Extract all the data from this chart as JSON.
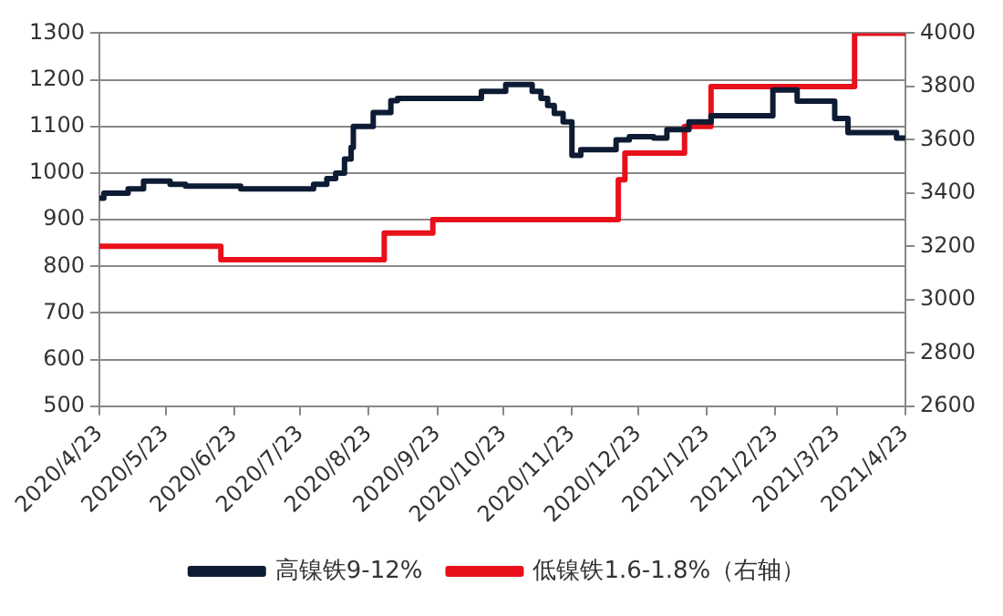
{
  "chart_data": {
    "type": "step",
    "xlim": [
      "2020-04-23",
      "2021-04-23"
    ],
    "xticks": [
      {
        "value": "2020-04-23",
        "label": "2020/4/23"
      },
      {
        "value": "2020-05-23",
        "label": "2020/5/23"
      },
      {
        "value": "2020-06-23",
        "label": "2020/6/23"
      },
      {
        "value": "2020-07-23",
        "label": "2020/7/23"
      },
      {
        "value": "2020-08-23",
        "label": "2020/8/23"
      },
      {
        "value": "2020-09-23",
        "label": "2020/9/23"
      },
      {
        "value": "2020-10-23",
        "label": "2020/10/23"
      },
      {
        "value": "2020-11-23",
        "label": "2020/11/23"
      },
      {
        "value": "2020-12-23",
        "label": "2020/12/23"
      },
      {
        "value": "2021-01-23",
        "label": "2021/1/23"
      },
      {
        "value": "2021-02-23",
        "label": "2021/2/23"
      },
      {
        "value": "2021-03-23",
        "label": "2021/3/23"
      },
      {
        "value": "2021-04-23",
        "label": "2021/4/23"
      }
    ],
    "ylim": [
      500,
      1300
    ],
    "yticks": [
      500,
      600,
      700,
      800,
      900,
      1000,
      1100,
      1200,
      1300
    ],
    "y2lim": [
      2600,
      4000
    ],
    "y2ticks": [
      2600,
      2800,
      3000,
      3200,
      3400,
      3600,
      3800,
      4000
    ],
    "grid": "y",
    "legend": "bottom",
    "marker": "none",
    "line_style": "solid",
    "series": [
      {
        "name": "高镍铁9-12%",
        "color": "#0d1b33",
        "x": [
          "2020-04-23",
          "2020-04-25",
          "2020-05-06",
          "2020-05-13",
          "2020-05-25",
          "2020-06-01",
          "2020-06-26",
          "2020-07-29",
          "2020-08-04",
          "2020-08-08",
          "2020-08-12",
          "2020-08-15",
          "2020-08-16",
          "2020-08-25",
          "2020-09-02",
          "2020-09-05",
          "2020-10-13",
          "2020-10-24",
          "2020-11-05",
          "2020-11-09",
          "2020-11-12",
          "2020-11-15",
          "2020-11-19",
          "2020-11-23",
          "2020-11-27",
          "2020-12-13",
          "2020-12-19",
          "2020-12-30",
          "2021-01-05",
          "2021-01-15",
          "2021-01-25",
          "2021-02-22",
          "2021-03-05",
          "2021-03-22",
          "2021-03-28",
          "2021-04-19",
          "2021-04-23"
        ],
        "values": [
          946,
          957,
          966,
          983,
          976,
          972,
          966,
          976,
          988,
          1000,
          1030,
          1055,
          1100,
          1130,
          1155,
          1160,
          1175,
          1190,
          1175,
          1160,
          1145,
          1128,
          1110,
          1038,
          1050,
          1071,
          1078,
          1075,
          1093,
          1110,
          1123,
          1178,
          1154,
          1117,
          1087,
          1075,
          1075
        ]
      },
      {
        "name": "低镍铁1.6-1.8%（右轴）",
        "color": "#e8101a",
        "axis": "y2",
        "x": [
          "2020-04-23",
          "2020-06-17",
          "2020-08-30",
          "2020-09-21",
          "2020-12-14",
          "2020-12-17",
          "2021-01-13",
          "2021-01-25",
          "2021-03-31",
          "2021-04-23"
        ],
        "values": [
          3200,
          3150,
          3250,
          3300,
          3450,
          3550,
          3650,
          3800,
          4000,
          4000
        ]
      }
    ]
  }
}
